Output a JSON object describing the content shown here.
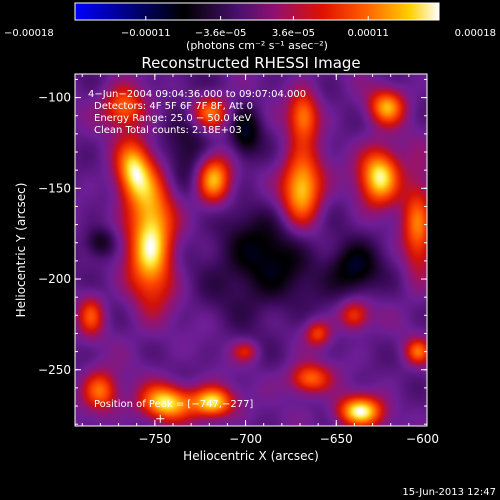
{
  "chart_data": {
    "type": "heatmap",
    "title": "Reconstructed RHESSI Image",
    "xlabel": "Heliocentric X (arcsec)",
    "ylabel": "Heliocentric Y (arcsec)",
    "xlim": [
      -794,
      -600
    ],
    "ylim": [
      -281,
      -87
    ],
    "x_ticks": [
      -750,
      -700,
      -650,
      -600
    ],
    "x_tick_labels": [
      "−750",
      "−700",
      "−650",
      "−600"
    ],
    "y_ticks": [
      -100,
      -150,
      -200,
      -250
    ],
    "y_tick_labels": [
      "−100",
      "−150",
      "−200",
      "−250"
    ],
    "colorbar": {
      "min": -0.00018,
      "max": 0.00018,
      "tick_values": [
        -0.00018,
        -0.00011,
        -3.6e-05,
        3.6e-05,
        0.00011,
        0.00018
      ],
      "tick_labels": [
        "−0.00018",
        "−0.00011",
        "−3.6e−05",
        "3.6e−05",
        "0.00011",
        "0.00018"
      ],
      "units_label": "(photons cm⁻² s⁻¹ asec⁻²)"
    },
    "colors": [
      "#0000ff",
      "#000000",
      "#3a0a5a",
      "#7a1f9a",
      "#c01010",
      "#ff4000",
      "#ff9a00",
      "#ffff40",
      "#ffffff"
    ],
    "annotations": {
      "time": "4−Jun−2004 09:04:36.000 to 09:07:04.000",
      "detectors": "Detectors: 4F 5F 6F 7F 8F, Att 0",
      "energy": "Energy Range: 25.0 − 50.0 keV",
      "clean": "Clean     Total counts: 2.18E+03",
      "peak": "Position of Peak = [−747,−277]"
    },
    "sources": [
      {
        "x": -752,
        "y": -178,
        "sx": 9,
        "sy": 24,
        "v": 0.00018
      },
      {
        "x": -762,
        "y": -140,
        "sx": 7,
        "sy": 12,
        "v": 0.00014
      },
      {
        "x": -767,
        "y": -105,
        "sx": 8,
        "sy": 8,
        "v": 0.00012
      },
      {
        "x": -718,
        "y": -145,
        "sx": 7,
        "sy": 10,
        "v": 0.00016
      },
      {
        "x": -720,
        "y": -108,
        "sx": 8,
        "sy": 7,
        "v": 0.00013
      },
      {
        "x": -669,
        "y": -150,
        "sx": 8,
        "sy": 14,
        "v": 0.00017
      },
      {
        "x": -668,
        "y": -110,
        "sx": 6,
        "sy": 10,
        "v": 0.00012
      },
      {
        "x": -626,
        "y": -143,
        "sx": 8,
        "sy": 11,
        "v": 0.00017
      },
      {
        "x": -622,
        "y": -105,
        "sx": 7,
        "sy": 7,
        "v": 0.00013
      },
      {
        "x": -605,
        "y": -170,
        "sx": 6,
        "sy": 20,
        "v": 0.00011
      },
      {
        "x": -744,
        "y": -268,
        "sx": 10,
        "sy": 7,
        "v": 0.00016
      },
      {
        "x": -718,
        "y": -268,
        "sx": 8,
        "sy": 6,
        "v": 0.00017
      },
      {
        "x": -780,
        "y": -262,
        "sx": 7,
        "sy": 8,
        "v": 0.00012
      },
      {
        "x": -665,
        "y": -255,
        "sx": 8,
        "sy": 6,
        "v": 0.00012
      },
      {
        "x": -637,
        "y": -273,
        "sx": 9,
        "sy": 6,
        "v": 0.00017
      },
      {
        "x": -640,
        "y": -220,
        "sx": 6,
        "sy": 6,
        "v": 0.0001
      },
      {
        "x": -660,
        "y": -230,
        "sx": 5,
        "sy": 5,
        "v": 9e-05
      },
      {
        "x": -700,
        "y": -240,
        "sx": 5,
        "sy": 4,
        "v": 7e-05
      },
      {
        "x": -785,
        "y": -220,
        "sx": 5,
        "sy": 8,
        "v": 9e-05
      },
      {
        "x": -605,
        "y": -240,
        "sx": 5,
        "sy": 5,
        "v": 0.0001
      },
      {
        "x": -730,
        "y": -125,
        "sx": 10,
        "sy": 20,
        "v": -6e-05
      },
      {
        "x": -690,
        "y": -190,
        "sx": 20,
        "sy": 20,
        "v": -8e-05
      },
      {
        "x": -640,
        "y": -195,
        "sx": 10,
        "sy": 10,
        "v": -9e-05
      },
      {
        "x": -700,
        "y": -120,
        "sx": 6,
        "sy": 10,
        "v": -8e-05
      },
      {
        "x": -780,
        "y": -180,
        "sx": 6,
        "sy": 6,
        "v": -7e-05
      }
    ]
  }
}
